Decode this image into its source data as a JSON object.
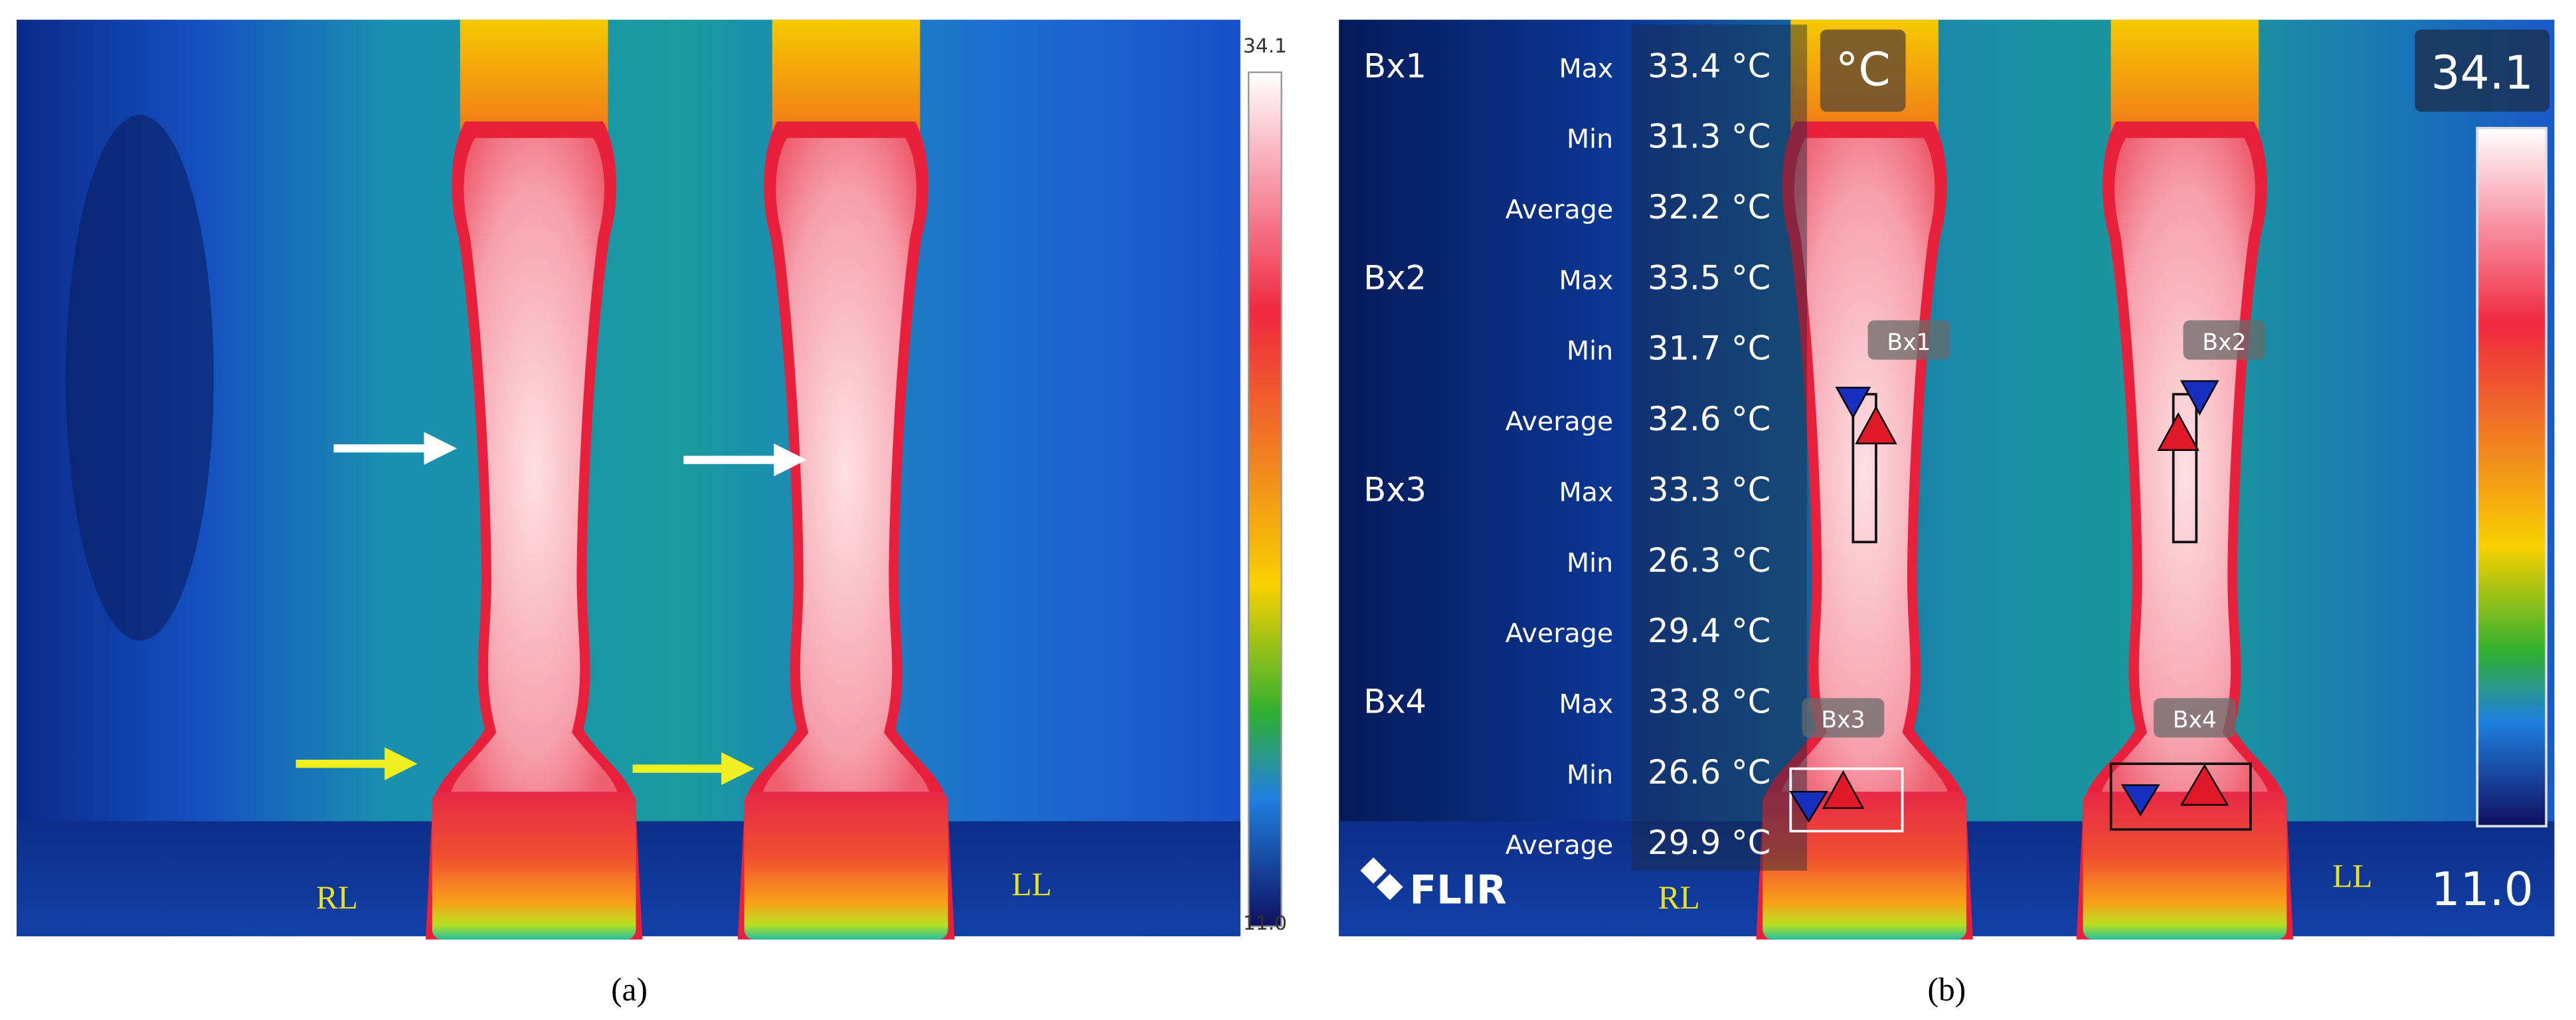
{
  "panels": [
    {
      "caption": "(a)",
      "scale_max": "34.1",
      "scale_min": "11.0",
      "labels": [
        "RL",
        "LL"
      ]
    },
    {
      "caption": "(b)",
      "unit_badge": "°C",
      "scale_max": "34.1",
      "scale_min": "11.0",
      "labels": [
        "RL",
        "LL"
      ],
      "logo": "FLIR",
      "measurements": [
        {
          "box": "Bx1",
          "rows": [
            {
              "stat": "Max",
              "value": "33.4 °C"
            },
            {
              "stat": "Min",
              "value": "31.3 °C"
            },
            {
              "stat": "Average",
              "value": "32.2 °C"
            }
          ]
        },
        {
          "box": "Bx2",
          "rows": [
            {
              "stat": "Max",
              "value": "33.5 °C"
            },
            {
              "stat": "Min",
              "value": "31.7 °C"
            },
            {
              "stat": "Average",
              "value": "32.6 °C"
            }
          ]
        },
        {
          "box": "Bx3",
          "rows": [
            {
              "stat": "Max",
              "value": "33.3 °C"
            },
            {
              "stat": "Min",
              "value": "26.3 °C"
            },
            {
              "stat": "Average",
              "value": "29.4 °C"
            }
          ]
        },
        {
          "box": "Bx4",
          "rows": [
            {
              "stat": "Max",
              "value": "33.8 °C"
            },
            {
              "stat": "Min",
              "value": "26.6 °C"
            },
            {
              "stat": "Average",
              "value": "29.9 °C"
            }
          ]
        }
      ],
      "box_tags": [
        "Bx1",
        "Bx2",
        "Bx3",
        "Bx4"
      ]
    }
  ]
}
